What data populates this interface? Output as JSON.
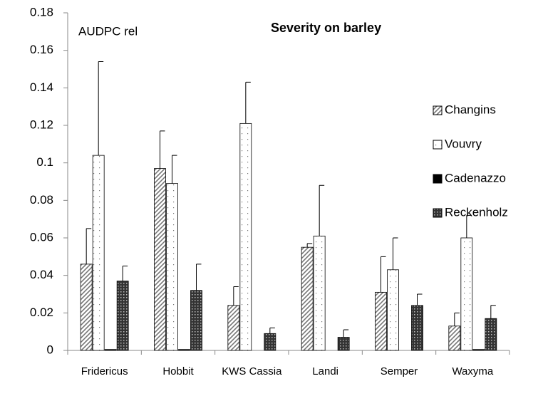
{
  "chart_data": {
    "type": "bar",
    "title": "Severity on barley",
    "annotation": "AUDPC rel",
    "categories": [
      "Fridericus",
      "Hobbit",
      "KWS Cassia",
      "Landi",
      "Semper",
      "Waxyma"
    ],
    "series": [
      {
        "name": "Changins",
        "color": "#777777",
        "pattern": "hatch",
        "values": [
          0.046,
          0.097,
          0.024,
          0.055,
          0.031,
          0.013
        ],
        "errors": [
          0.019,
          0.02,
          0.01,
          0.002,
          0.019,
          0.007
        ]
      },
      {
        "name": "Vouvry",
        "color": "#777777",
        "pattern": "dots",
        "values": [
          0.104,
          0.089,
          0.121,
          0.061,
          0.043,
          0.06
        ],
        "errors": [
          0.05,
          0.015,
          0.022,
          0.027,
          0.017,
          0.012
        ]
      },
      {
        "name": "Cadenazzo",
        "color": "#000000",
        "pattern": "solid",
        "values": [
          0.0005,
          0.0005,
          0,
          0,
          0,
          0.0005
        ]
      },
      {
        "name": "Reckenholz",
        "color": "#333333",
        "pattern": "grid",
        "values": [
          0.037,
          0.032,
          0.009,
          0.007,
          0.024,
          0.017
        ],
        "errors": [
          0.008,
          0.014,
          0.003,
          0.004,
          0.006,
          0.007
        ]
      }
    ],
    "ylim": [
      0,
      0.18
    ],
    "yticks": [
      0,
      0.02,
      0.04,
      0.06,
      0.08,
      0.1,
      0.12,
      0.14,
      0.16,
      0.18
    ],
    "legend": "right"
  }
}
